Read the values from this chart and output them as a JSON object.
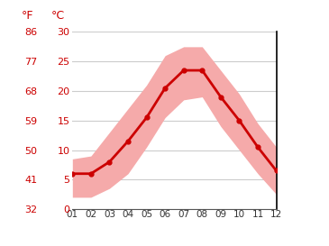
{
  "months": [
    1,
    2,
    3,
    4,
    5,
    6,
    7,
    8,
    9,
    10,
    11,
    12
  ],
  "month_labels": [
    "01",
    "02",
    "03",
    "04",
    "05",
    "06",
    "07",
    "08",
    "09",
    "10",
    "11",
    "12"
  ],
  "avg_temp": [
    6.0,
    6.0,
    8.0,
    11.5,
    15.5,
    20.5,
    23.5,
    23.5,
    19.0,
    15.0,
    10.5,
    6.5
  ],
  "temp_max": [
    8.5,
    9.0,
    13.0,
    17.0,
    21.0,
    26.0,
    27.5,
    27.5,
    23.5,
    19.5,
    14.5,
    10.5
  ],
  "temp_min": [
    2.0,
    2.0,
    3.5,
    6.0,
    10.5,
    15.5,
    18.5,
    19.0,
    14.0,
    10.0,
    6.0,
    2.5
  ],
  "line_color": "#cc0000",
  "band_color": "#f5aaaa",
  "grid_color": "#cccccc",
  "text_color": "#cc0000",
  "background_color": "#ffffff",
  "ylim": [
    0,
    30
  ],
  "yticks_c": [
    0,
    5,
    10,
    15,
    20,
    25,
    30
  ],
  "yticks_f": [
    32,
    41,
    50,
    59,
    68,
    77,
    86
  ],
  "ylabel_left": "°F",
  "ylabel_right": "°C",
  "figsize": [
    3.65,
    2.73
  ],
  "dpi": 100
}
